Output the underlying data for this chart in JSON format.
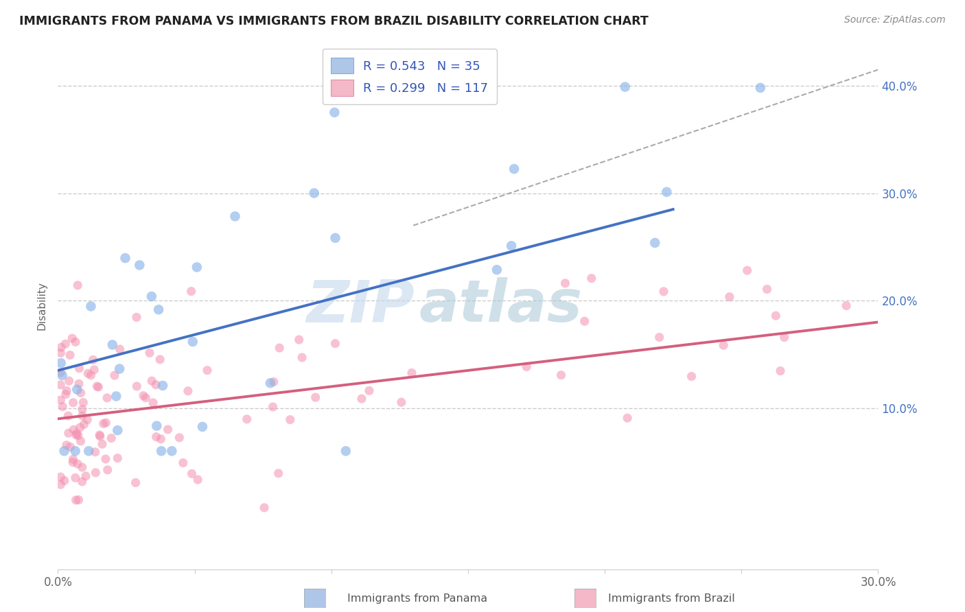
{
  "title": "IMMIGRANTS FROM PANAMA VS IMMIGRANTS FROM BRAZIL DISABILITY CORRELATION CHART",
  "source": "Source: ZipAtlas.com",
  "ylabel": "Disability",
  "watermark_zip": "ZIP",
  "watermark_atlas": "atlas",
  "xlim": [
    0.0,
    0.3
  ],
  "ylim": [
    -0.05,
    0.44
  ],
  "x_ticks": [
    0.0,
    0.05,
    0.1,
    0.15,
    0.2,
    0.25,
    0.3
  ],
  "x_tick_labels": [
    "0.0%",
    "",
    "",
    "",
    "",
    "",
    "30.0%"
  ],
  "y_ticks_right": [
    0.1,
    0.2,
    0.3,
    0.4
  ],
  "y_tick_labels_right": [
    "10.0%",
    "20.0%",
    "30.0%",
    "40.0%"
  ],
  "panama_line_color": "#4472c4",
  "brazil_line_color": "#d45f7e",
  "dash_color": "#aaaaaa",
  "panama_scatter_color": "#8ab4e8",
  "brazil_scatter_color": "#f490b0",
  "background_color": "#ffffff",
  "grid_color": "#cccccc",
  "panama_line_x0": 0.0,
  "panama_line_y0": 0.135,
  "panama_line_x1": 0.225,
  "panama_line_y1": 0.285,
  "brazil_line_x0": 0.0,
  "brazil_line_y0": 0.09,
  "brazil_line_x1": 0.3,
  "brazil_line_y1": 0.18,
  "dash_line_x0": 0.13,
  "dash_line_y0": 0.27,
  "dash_line_x1": 0.3,
  "dash_line_y1": 0.415
}
